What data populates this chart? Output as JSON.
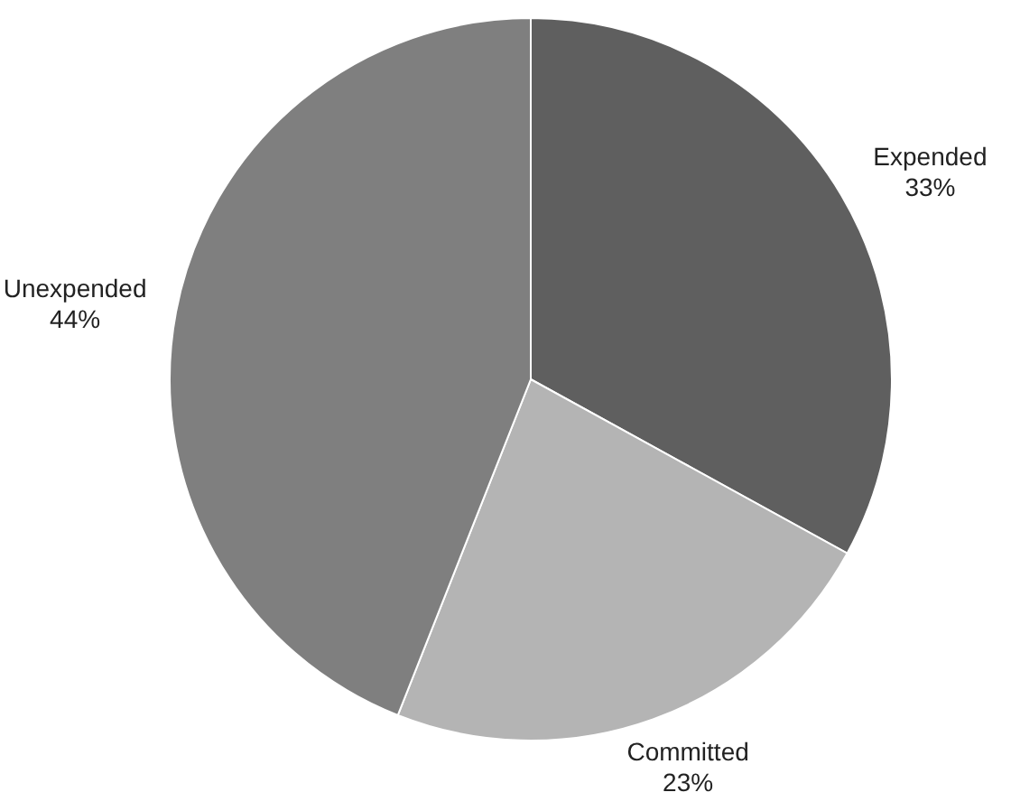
{
  "chart_data": {
    "type": "pie",
    "categories": [
      "Expended",
      "Committed",
      "Unexpended"
    ],
    "values": [
      33,
      23,
      44
    ],
    "colors": [
      "#5f5f5f",
      "#b4b4b4",
      "#7f7f7f"
    ],
    "value_labels": [
      "33%",
      "23%",
      "44%"
    ]
  }
}
